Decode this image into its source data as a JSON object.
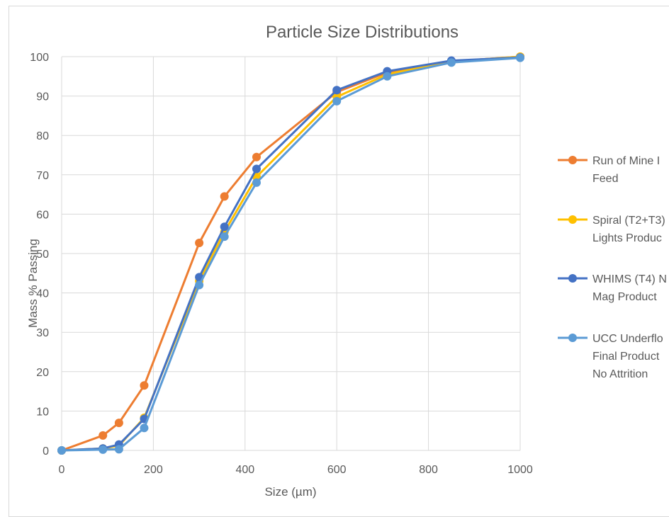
{
  "chart_data": {
    "type": "line",
    "title": "Particle Size Distributions",
    "xlabel": "Size (µm)",
    "ylabel": "Mass % Passing",
    "xlim": [
      0,
      1000
    ],
    "ylim": [
      0,
      100
    ],
    "xticks": [
      "0",
      "200",
      "400",
      "600",
      "800",
      "1000"
    ],
    "yticks": [
      "0",
      "10",
      "20",
      "30",
      "40",
      "50",
      "60",
      "70",
      "80",
      "90",
      "100"
    ],
    "grid": true,
    "legend_position": "right",
    "series": [
      {
        "name_lines": [
          "Run of Mine I",
          "Feed"
        ],
        "color": "#ED7D31",
        "x": [
          0,
          90,
          125,
          180,
          300,
          355,
          425,
          600,
          710,
          850,
          1000
        ],
        "y": [
          0,
          3.8,
          7,
          16.5,
          52.7,
          64.5,
          74.5,
          91,
          96,
          98.8,
          100
        ]
      },
      {
        "name_lines": [
          "Spiral (T2+T3)",
          "Lights Produc"
        ],
        "color": "#FFC000",
        "x": [
          0,
          90,
          125,
          180,
          300,
          355,
          425,
          600,
          710,
          850,
          1000
        ],
        "y": [
          0,
          0.5,
          1.2,
          8.3,
          43,
          55.5,
          69.5,
          89.8,
          95.5,
          98.8,
          100
        ]
      },
      {
        "name_lines": [
          "WHIMS (T4) N",
          "Mag Product"
        ],
        "color": "#4472C4",
        "x": [
          0,
          90,
          125,
          180,
          300,
          355,
          425,
          600,
          710,
          850,
          1000
        ],
        "y": [
          0,
          0.5,
          1.5,
          8,
          44,
          56.8,
          71.5,
          91.5,
          96.3,
          99,
          99.8
        ]
      },
      {
        "name_lines": [
          "UCC Underflo",
          "Final Product",
          "No Attrition"
        ],
        "color": "#5B9BD5",
        "x": [
          0,
          90,
          125,
          180,
          300,
          355,
          425,
          600,
          710,
          850,
          1000
        ],
        "y": [
          0,
          0.2,
          0.3,
          5.7,
          42,
          54.3,
          68,
          88.7,
          95,
          98.5,
          99.7
        ]
      }
    ]
  }
}
